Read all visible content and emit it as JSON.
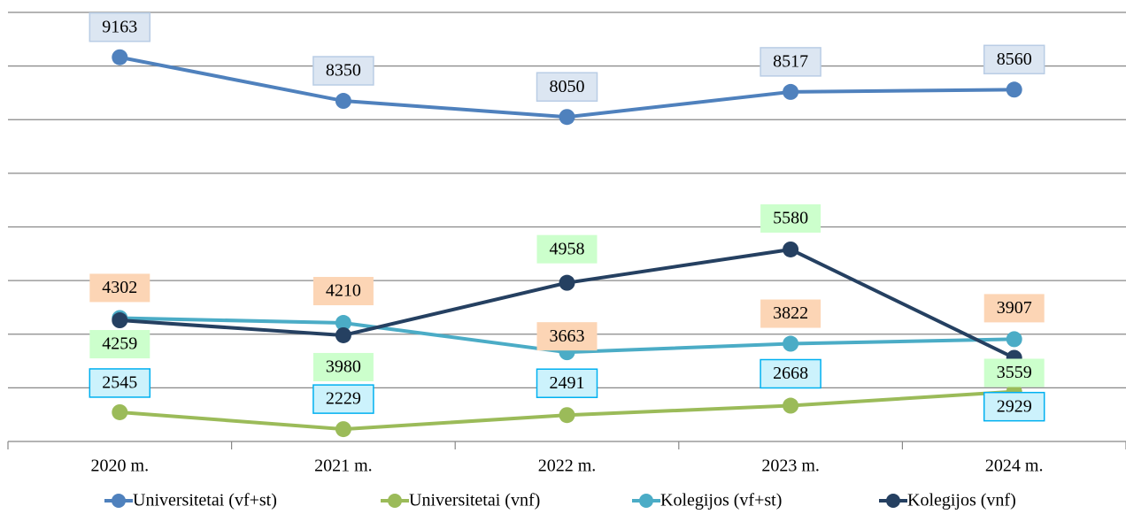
{
  "chart_data": {
    "type": "line",
    "categories": [
      "2020 m.",
      "2021 m.",
      "2022 m.",
      "2023 m.",
      "2024 m."
    ],
    "series": [
      {
        "name": "Universitetai (vf+st)",
        "color": "#4f81bd",
        "values": [
          9163,
          8350,
          8050,
          8517,
          8560
        ]
      },
      {
        "name": "Universitetai (vnf)",
        "color": "#9bbb59",
        "values": [
          2545,
          2229,
          2491,
          2668,
          2929
        ]
      },
      {
        "name": "Kolegijos (vf+st)",
        "color": "#4bacc6",
        "values": [
          4302,
          4210,
          3663,
          3822,
          3907
        ]
      },
      {
        "name": "Kolegijos (vnf)",
        "color": "#254061",
        "values": [
          4259,
          3980,
          4958,
          5580,
          3559
        ]
      }
    ],
    "ylim": [
      2000,
      10000
    ],
    "yticks": [
      2000,
      3000,
      4000,
      5000,
      6000,
      7000,
      8000,
      9000,
      10000
    ],
    "show_ytick_labels": false,
    "grid": true,
    "legend": "bottom"
  }
}
